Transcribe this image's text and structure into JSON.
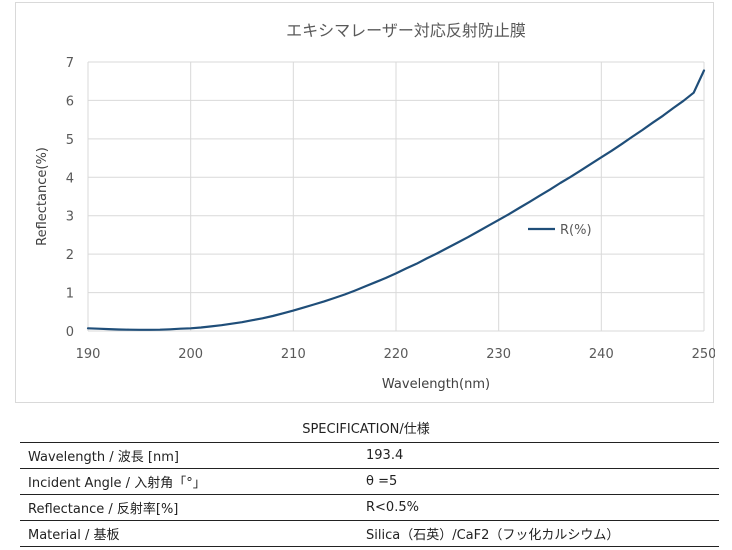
{
  "chart_data": {
    "type": "line",
    "title": "エキシマレーザー対応反射防止膜",
    "xlabel": "Wavelength(nm)",
    "ylabel": "Reflectance(%)",
    "xlim": [
      190,
      250
    ],
    "ylim": [
      0,
      7
    ],
    "x_ticks": [
      "190",
      "200",
      "210",
      "220",
      "230",
      "240",
      "250"
    ],
    "y_ticks": [
      "0",
      "1",
      "2",
      "3",
      "4",
      "5",
      "6",
      "7"
    ],
    "grid": true,
    "legend_position": "right",
    "series": [
      {
        "name": "R(%)",
        "color": "#1f4e79",
        "x": [
          190,
          191,
          192,
          193,
          194,
          195,
          196,
          197,
          198,
          199,
          200,
          201,
          202,
          203,
          204,
          205,
          206,
          207,
          208,
          209,
          210,
          211,
          212,
          213,
          214,
          215,
          216,
          217,
          218,
          219,
          220,
          221,
          222,
          223,
          224,
          225,
          226,
          227,
          228,
          229,
          230,
          231,
          232,
          233,
          234,
          235,
          236,
          237,
          238,
          239,
          240,
          241,
          242,
          243,
          244,
          245,
          246,
          247,
          248,
          249,
          250
        ],
        "y": [
          0.07,
          0.06,
          0.05,
          0.04,
          0.035,
          0.03,
          0.03,
          0.035,
          0.045,
          0.06,
          0.07,
          0.09,
          0.12,
          0.15,
          0.19,
          0.23,
          0.28,
          0.33,
          0.39,
          0.46,
          0.53,
          0.61,
          0.69,
          0.77,
          0.86,
          0.95,
          1.05,
          1.16,
          1.27,
          1.38,
          1.5,
          1.63,
          1.75,
          1.89,
          2.02,
          2.16,
          2.3,
          2.44,
          2.59,
          2.74,
          2.89,
          3.04,
          3.2,
          3.36,
          3.52,
          3.68,
          3.85,
          4.01,
          4.18,
          4.35,
          4.52,
          4.69,
          4.87,
          5.05,
          5.23,
          5.42,
          5.6,
          5.8,
          5.99,
          6.2,
          6.78
        ]
      }
    ]
  },
  "spec": {
    "title": "SPECIFICATION/仕様",
    "rows": [
      {
        "label": "Wavelength / 波長 [nm]",
        "value": "193.4"
      },
      {
        "label": "Incident Angle / 入射角「°」",
        "value": "θ =5"
      },
      {
        "label": "Reflectance / 反射率[%]",
        "value": "R<0.5%"
      },
      {
        "label": "Material / 基板",
        "value": "Silica（石英）/CaF2（フッ化カルシウム）"
      }
    ]
  }
}
